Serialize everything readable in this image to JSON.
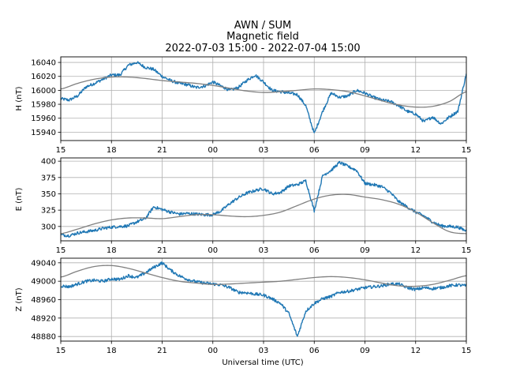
{
  "chart_data": {
    "type": "line",
    "title_lines": [
      "AWN / SUM",
      "Magnetic field",
      "2022-07-03 15:00 - 2022-07-04 15:00"
    ],
    "xlabel": "Universal time (UTC)",
    "x_unit": "hours since 2022-07-03 15:00 UTC",
    "xlim": [
      0,
      24
    ],
    "x_ticks": [
      0,
      3,
      6,
      9,
      12,
      15,
      18,
      21,
      24
    ],
    "x_tick_labels": [
      "15",
      "18",
      "21",
      "00",
      "03",
      "06",
      "09",
      "12",
      "15"
    ],
    "colors": {
      "measured": "#1f77b4",
      "baseline": "#808080"
    },
    "panels": [
      {
        "name": "H",
        "ylabel": "H (nT)",
        "ylim": [
          15928,
          16048
        ],
        "y_ticks": [
          15940,
          15960,
          15980,
          16000,
          16020,
          16040
        ],
        "series": [
          {
            "name": "measured",
            "x": [
              0,
              0.5,
              1,
              1.5,
              2,
              2.5,
              3,
              3.5,
              4,
              4.5,
              5,
              5.5,
              6,
              6.5,
              7,
              7.5,
              8,
              8.5,
              9,
              9.5,
              10,
              10.5,
              11,
              11.5,
              12,
              12.5,
              13,
              13.5,
              14,
              14.5,
              15,
              15.5,
              16,
              16.5,
              17,
              17.5,
              18,
              18.5,
              19,
              19.5,
              20,
              20.5,
              21,
              21.5,
              22,
              22.5,
              23,
              23.5,
              24
            ],
            "values": [
              15988,
              15986,
              15992,
              16005,
              16010,
              16016,
              16022,
              16022,
              16036,
              16040,
              16033,
              16030,
              16020,
              16014,
              16010,
              16008,
              16004,
              16006,
              16012,
              16006,
              16000,
              16004,
              16014,
              16022,
              16012,
              16000,
              15998,
              15996,
              15994,
              15978,
              15938,
              15970,
              15996,
              15990,
              15992,
              16000,
              15996,
              15990,
              15986,
              15984,
              15978,
              15970,
              15966,
              15955,
              15962,
              15952,
              15962,
              15970,
              16024
            ]
          },
          {
            "name": "baseline",
            "x": [
              0,
              1,
              2,
              3,
              4,
              5,
              6,
              7,
              8,
              9,
              10,
              11,
              12,
              13,
              14,
              15,
              16,
              17,
              18,
              19,
              20,
              21,
              22,
              23,
              24
            ],
            "values": [
              16002,
              16010,
              16016,
              16019,
              16019,
              16017,
              16014,
              16012,
              16010,
              16007,
              16003,
              15999,
              15997,
              15998,
              16000,
              16002,
              16001,
              15998,
              15992,
              15985,
              15979,
              15976,
              15977,
              15984,
              15998
            ]
          }
        ]
      },
      {
        "name": "E",
        "ylabel": "E (nT)",
        "ylim": [
          278,
          405
        ],
        "y_ticks": [
          300,
          325,
          350,
          375,
          400
        ],
        "series": [
          {
            "name": "measured",
            "x": [
              0,
              0.5,
              1,
              1.5,
              2,
              2.5,
              3,
              3.5,
              4,
              4.5,
              5,
              5.5,
              6,
              6.5,
              7,
              7.5,
              8,
              8.5,
              9,
              9.5,
              10,
              10.5,
              11,
              11.5,
              12,
              12.5,
              13,
              13.5,
              14,
              14.5,
              15,
              15.5,
              16,
              16.5,
              17,
              17.5,
              18,
              18.5,
              19,
              19.5,
              20,
              20.5,
              21,
              21.5,
              22,
              22.5,
              23,
              23.5,
              24
            ],
            "values": [
              287,
              286,
              290,
              292,
              294,
              297,
              299,
              300,
              301,
              307,
              312,
              330,
              326,
              322,
              319,
              320,
              319,
              318,
              318,
              324,
              335,
              344,
              351,
              355,
              358,
              350,
              352,
              362,
              364,
              370,
              324,
              378,
              386,
              398,
              392,
              386,
              366,
              364,
              361,
              352,
              338,
              330,
              322,
              316,
              307,
              301,
              300,
              299,
              293
            ]
          },
          {
            "name": "baseline",
            "x": [
              0,
              1,
              2,
              3,
              4,
              5,
              6,
              7,
              8,
              9,
              10,
              11,
              12,
              13,
              14,
              15,
              16,
              17,
              18,
              19,
              20,
              21,
              22,
              23,
              24
            ],
            "values": [
              289,
              296,
              304,
              310,
              313,
              313,
              312,
              315,
              318,
              318,
              316,
              315,
              317,
              322,
              332,
              342,
              348,
              349,
              345,
              341,
              334,
              322,
              306,
              292,
              289
            ]
          }
        ]
      },
      {
        "name": "Z",
        "ylabel": "Z (nT)",
        "ylim": [
          48870,
          49050
        ],
        "y_ticks": [
          48880,
          48920,
          48960,
          49000,
          49040
        ],
        "series": [
          {
            "name": "measured",
            "x": [
              0,
              0.5,
              1,
              1.5,
              2,
              2.5,
              3,
              3.5,
              4,
              4.5,
              5,
              5.5,
              6,
              6.5,
              7,
              7.5,
              8,
              8.5,
              9,
              9.5,
              10,
              10.5,
              11,
              11.5,
              12,
              12.5,
              13,
              13.5,
              14,
              14.5,
              15,
              15.5,
              16,
              16.5,
              17,
              17.5,
              18,
              18.5,
              19,
              19.5,
              20,
              20.5,
              21,
              21.5,
              22,
              22.5,
              23,
              23.5,
              24
            ],
            "values": [
              48990,
              48988,
              48994,
              49000,
              49002,
              49000,
              49005,
              49004,
              49012,
              49008,
              49018,
              49030,
              49040,
              49024,
              49012,
              49004,
              48999,
              48996,
              48994,
              48992,
              48986,
              48976,
              48975,
              48972,
              48970,
              48962,
              48952,
              48930,
              48880,
              48935,
              48952,
              48962,
              48967,
              48976,
              48978,
              48982,
              48986,
              48988,
              48990,
              48994,
              48994,
              48986,
              48982,
              48986,
              48984,
              48986,
              48990,
              48992,
              48990
            ]
          },
          {
            "name": "baseline",
            "x": [
              0,
              1,
              2,
              3,
              4,
              5,
              6,
              7,
              8,
              9,
              10,
              11,
              12,
              13,
              14,
              15,
              16,
              17,
              18,
              19,
              20,
              21,
              22,
              23,
              24
            ],
            "values": [
              49009,
              49022,
              49032,
              49034,
              49028,
              49018,
              49008,
              49000,
              48996,
              48993,
              48994,
              48996,
              48998,
              49000,
              49004,
              49008,
              49010,
              49008,
              49003,
              48996,
              48990,
              48989,
              48993,
              49002,
              49012
            ]
          }
        ]
      }
    ]
  }
}
